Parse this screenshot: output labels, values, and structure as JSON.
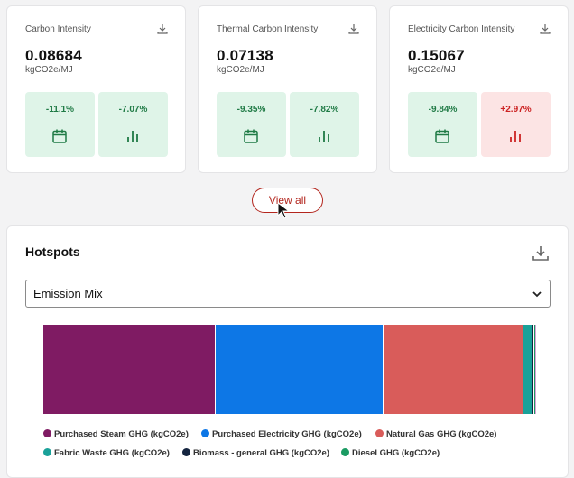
{
  "cards": [
    {
      "title": "Carbon Intensity",
      "value": "0.08684",
      "unit": "kgCO2e/MJ",
      "tiles": [
        {
          "pct": "-11.1%",
          "icon": "calendar-icon",
          "tone": "green"
        },
        {
          "pct": "-7.07%",
          "icon": "bar-chart-icon",
          "tone": "green"
        }
      ]
    },
    {
      "title": "Thermal Carbon Intensity",
      "value": "0.07138",
      "unit": "kgCO2e/MJ",
      "tiles": [
        {
          "pct": "-9.35%",
          "icon": "calendar-icon",
          "tone": "green"
        },
        {
          "pct": "-7.82%",
          "icon": "bar-chart-icon",
          "tone": "green"
        }
      ]
    },
    {
      "title": "Electricity Carbon Intensity",
      "value": "0.15067",
      "unit": "kgCO2e/MJ",
      "tiles": [
        {
          "pct": "-9.84%",
          "icon": "calendar-icon",
          "tone": "green"
        },
        {
          "pct": "+2.97%",
          "icon": "bar-chart-icon",
          "tone": "red"
        }
      ]
    }
  ],
  "view_all_label": "View all",
  "hotspots": {
    "title": "Hotspots",
    "select_value": "Emission Mix",
    "legend": [
      {
        "label": "Purchased Steam GHG (kgCO2e)",
        "color": "#7f1b63"
      },
      {
        "label": "Purchased Electricity GHG (kgCO2e)",
        "color": "#0d77e6"
      },
      {
        "label": "Natural Gas GHG (kgCO2e)",
        "color": "#d95c5a"
      },
      {
        "label": "Fabric Waste GHG (kgCO2e)",
        "color": "#1aa199"
      },
      {
        "label": "Biomass - general GHG (kgCO2e)",
        "color": "#14243f"
      },
      {
        "label": "Diesel GHG (kgCO2e)",
        "color": "#1b9b63"
      }
    ]
  },
  "chart_data": {
    "type": "bar",
    "orientation": "horizontal-stacked",
    "categories": [
      "Emission Mix"
    ],
    "series": [
      {
        "name": "Purchased Steam GHG (kgCO2e)",
        "values": [
          35.0
        ]
      },
      {
        "name": "Purchased Electricity GHG (kgCO2e)",
        "values": [
          34.0
        ]
      },
      {
        "name": "Natural Gas GHG (kgCO2e)",
        "values": [
          28.5
        ]
      },
      {
        "name": "Fabric Waste GHG (kgCO2e)",
        "values": [
          1.7
        ]
      },
      {
        "name": "Biomass - general GHG (kgCO2e)",
        "values": [
          0.4
        ]
      },
      {
        "name": "Diesel GHG (kgCO2e)",
        "values": [
          0.2
        ]
      },
      {
        "values": [
          0.2
        ]
      }
    ],
    "colors": [
      "#7f1b63",
      "#0d77e6",
      "#d95c5a",
      "#1aa199",
      "#14243f",
      "#1b9b63",
      "#d8a0d6"
    ]
  }
}
